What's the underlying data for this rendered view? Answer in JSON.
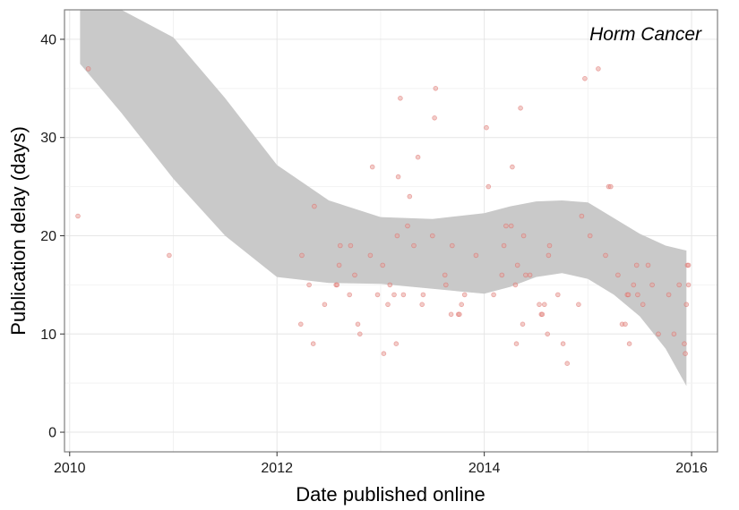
{
  "chart_data": {
    "type": "scatter",
    "title": "",
    "annotation": "Horm Cancer",
    "xlabel": "Date published online",
    "ylabel": "Publication delay (days)",
    "xlim": [
      2009.95,
      2016.25
    ],
    "ylim": [
      -2,
      43
    ],
    "x_ticks": [
      2010,
      2012,
      2014,
      2016
    ],
    "x_tick_labels": [
      "2010",
      "2012",
      "2014",
      "2016"
    ],
    "y_ticks": [
      0,
      10,
      20,
      30,
      40
    ],
    "y_tick_labels": [
      "0",
      "10",
      "20",
      "30",
      "40"
    ],
    "grid": true,
    "point_color": "#e8a39a",
    "point_stroke": "#d9534f",
    "band_color": "#c9c9c9",
    "points": [
      [
        2010.08,
        22
      ],
      [
        2010.18,
        37
      ],
      [
        2010.96,
        18
      ],
      [
        2012.23,
        11
      ],
      [
        2012.24,
        18
      ],
      [
        2012.31,
        15
      ],
      [
        2012.35,
        9
      ],
      [
        2012.36,
        23
      ],
      [
        2012.46,
        13
      ],
      [
        2012.57,
        15
      ],
      [
        2012.58,
        15
      ],
      [
        2012.6,
        17
      ],
      [
        2012.61,
        19
      ],
      [
        2012.7,
        14
      ],
      [
        2012.71,
        19
      ],
      [
        2012.75,
        16
      ],
      [
        2012.78,
        11
      ],
      [
        2012.8,
        10
      ],
      [
        2012.9,
        18
      ],
      [
        2012.92,
        27
      ],
      [
        2012.97,
        14
      ],
      [
        2013.02,
        17
      ],
      [
        2013.03,
        8
      ],
      [
        2013.07,
        13
      ],
      [
        2013.09,
        15
      ],
      [
        2013.13,
        14
      ],
      [
        2013.15,
        9
      ],
      [
        2013.16,
        20
      ],
      [
        2013.17,
        26
      ],
      [
        2013.19,
        34
      ],
      [
        2013.22,
        14
      ],
      [
        2013.26,
        21
      ],
      [
        2013.28,
        24
      ],
      [
        2013.32,
        19
      ],
      [
        2013.36,
        28
      ],
      [
        2013.4,
        13
      ],
      [
        2013.41,
        14
      ],
      [
        2013.5,
        20
      ],
      [
        2013.52,
        32
      ],
      [
        2013.53,
        35
      ],
      [
        2013.62,
        16
      ],
      [
        2013.63,
        15
      ],
      [
        2013.68,
        12
      ],
      [
        2013.69,
        19
      ],
      [
        2013.75,
        12
      ],
      [
        2013.76,
        12
      ],
      [
        2013.78,
        13
      ],
      [
        2013.81,
        14
      ],
      [
        2013.92,
        18
      ],
      [
        2014.02,
        31
      ],
      [
        2014.04,
        25
      ],
      [
        2014.09,
        14
      ],
      [
        2014.17,
        16
      ],
      [
        2014.19,
        19
      ],
      [
        2014.21,
        21
      ],
      [
        2014.26,
        21
      ],
      [
        2014.27,
        27
      ],
      [
        2014.3,
        15
      ],
      [
        2014.31,
        9
      ],
      [
        2014.32,
        17
      ],
      [
        2014.35,
        33
      ],
      [
        2014.37,
        11
      ],
      [
        2014.38,
        20
      ],
      [
        2014.4,
        16
      ],
      [
        2014.44,
        16
      ],
      [
        2014.53,
        13
      ],
      [
        2014.55,
        12
      ],
      [
        2014.56,
        12
      ],
      [
        2014.58,
        13
      ],
      [
        2014.61,
        10
      ],
      [
        2014.62,
        18
      ],
      [
        2014.63,
        19
      ],
      [
        2014.71,
        14
      ],
      [
        2014.76,
        9
      ],
      [
        2014.8,
        7
      ],
      [
        2014.91,
        13
      ],
      [
        2014.94,
        22
      ],
      [
        2014.97,
        36
      ],
      [
        2015.02,
        20
      ],
      [
        2015.1,
        37
      ],
      [
        2015.17,
        18
      ],
      [
        2015.2,
        25
      ],
      [
        2015.22,
        25
      ],
      [
        2015.29,
        16
      ],
      [
        2015.33,
        11
      ],
      [
        2015.36,
        11
      ],
      [
        2015.38,
        14
      ],
      [
        2015.39,
        14
      ],
      [
        2015.4,
        9
      ],
      [
        2015.44,
        15
      ],
      [
        2015.47,
        17
      ],
      [
        2015.48,
        14
      ],
      [
        2015.53,
        13
      ],
      [
        2015.58,
        17
      ],
      [
        2015.62,
        15
      ],
      [
        2015.68,
        10
      ],
      [
        2015.78,
        14
      ],
      [
        2015.83,
        10
      ],
      [
        2015.88,
        15
      ],
      [
        2015.93,
        9
      ],
      [
        2015.94,
        8
      ],
      [
        2015.95,
        13
      ],
      [
        2015.96,
        17
      ],
      [
        2015.97,
        15
      ],
      [
        2015.97,
        17
      ]
    ],
    "smooth_band": {
      "x": [
        2010.1,
        2010.5,
        2011.0,
        2011.5,
        2012.0,
        2012.5,
        2013.0,
        2013.5,
        2014.0,
        2014.25,
        2014.5,
        2014.75,
        2015.0,
        2015.25,
        2015.5,
        2015.75,
        2015.95
      ],
      "upper": [
        43.0,
        43.0,
        40.2,
        34.0,
        27.2,
        23.6,
        21.9,
        21.7,
        22.3,
        23.0,
        23.5,
        23.6,
        23.4,
        21.8,
        20.2,
        19.0,
        18.5
      ],
      "lower": [
        37.5,
        32.5,
        25.8,
        20.0,
        15.8,
        15.2,
        15.1,
        14.6,
        14.1,
        14.8,
        15.8,
        16.2,
        15.6,
        14.0,
        11.8,
        8.5,
        4.7
      ]
    }
  }
}
